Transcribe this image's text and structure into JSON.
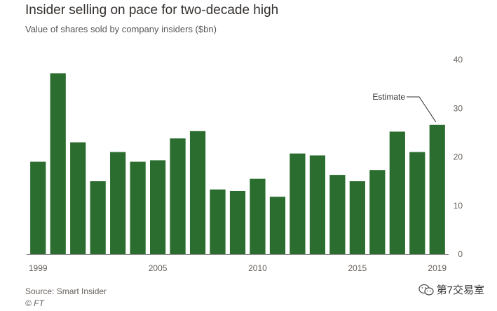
{
  "header": {
    "title": "Insider selling on pace for two-decade high",
    "subtitle": "Value of shares sold by company insiders ($bn)"
  },
  "footer": {
    "source": "Source: Smart Insider",
    "credit": "© FT"
  },
  "watermark": {
    "text": "第7交易室",
    "icon": "wechat-icon"
  },
  "colors": {
    "bar": "#2a6d2e",
    "axis": "#9a9a9a",
    "text": "#33302e"
  },
  "chart_data": {
    "type": "bar",
    "title": "Insider selling on pace for two-decade high",
    "subtitle": "Value of shares sold by company insiders ($bn)",
    "categories": [
      "1999",
      "2000",
      "2001",
      "2002",
      "2003",
      "2004",
      "2005",
      "2006",
      "2007",
      "2008",
      "2009",
      "2010",
      "2011",
      "2012",
      "2013",
      "2014",
      "2015",
      "2016",
      "2017",
      "2018",
      "2019"
    ],
    "x_tick_labels": [
      "1999",
      "2005",
      "2010",
      "2015",
      "2019"
    ],
    "values": [
      19,
      37.2,
      23,
      15,
      21,
      19,
      19.3,
      23.8,
      25.3,
      13.3,
      13,
      15.5,
      11.8,
      20.7,
      20.3,
      16.3,
      15,
      17.3,
      25.2,
      21,
      26.6
    ],
    "ylim": [
      0,
      40
    ],
    "yticks": [
      0,
      10,
      20,
      30,
      40
    ],
    "y_axis_side": "right",
    "grid": false,
    "xlabel": "",
    "ylabel": "",
    "annotation": {
      "text": "Estimate",
      "category": "2019"
    }
  }
}
